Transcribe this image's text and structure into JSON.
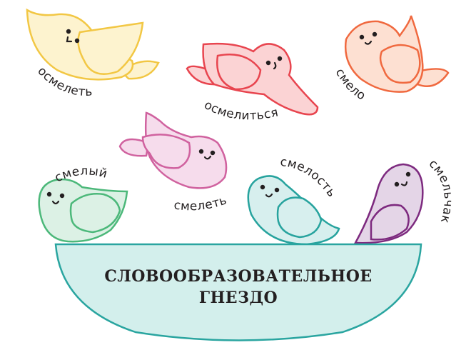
{
  "diagram": {
    "title_line1": "СЛОВООБРАЗОВАТЕЛЬНОЕ",
    "title_line2": "ГНЕЗДО",
    "words": {
      "osmelet": "осмелеть",
      "osmelitsya": "осмелиться",
      "smelo": "смело",
      "smelyy": "смелый",
      "smelet": "смелеть",
      "smelost": "смелость",
      "smelchak": "смельчак"
    },
    "colors": {
      "yellow_stroke": "#f2c744",
      "yellow_fill": "#fdf3cf",
      "red_stroke": "#e8454f",
      "red_fill": "#fbd3d4",
      "orange_stroke": "#f0693f",
      "orange_fill": "#fde0d2",
      "pink_stroke": "#d0629f",
      "pink_fill": "#f6dcec",
      "green_stroke": "#4cb87a",
      "green_fill": "#dcf1e5",
      "teal_stroke": "#27a39e",
      "teal_fill": "#d7efee",
      "purple_stroke": "#7d2a7f",
      "purple_fill": "#e4d5e7",
      "nest_stroke": "#2aa5a0",
      "nest_fill": "#d3efec"
    }
  }
}
